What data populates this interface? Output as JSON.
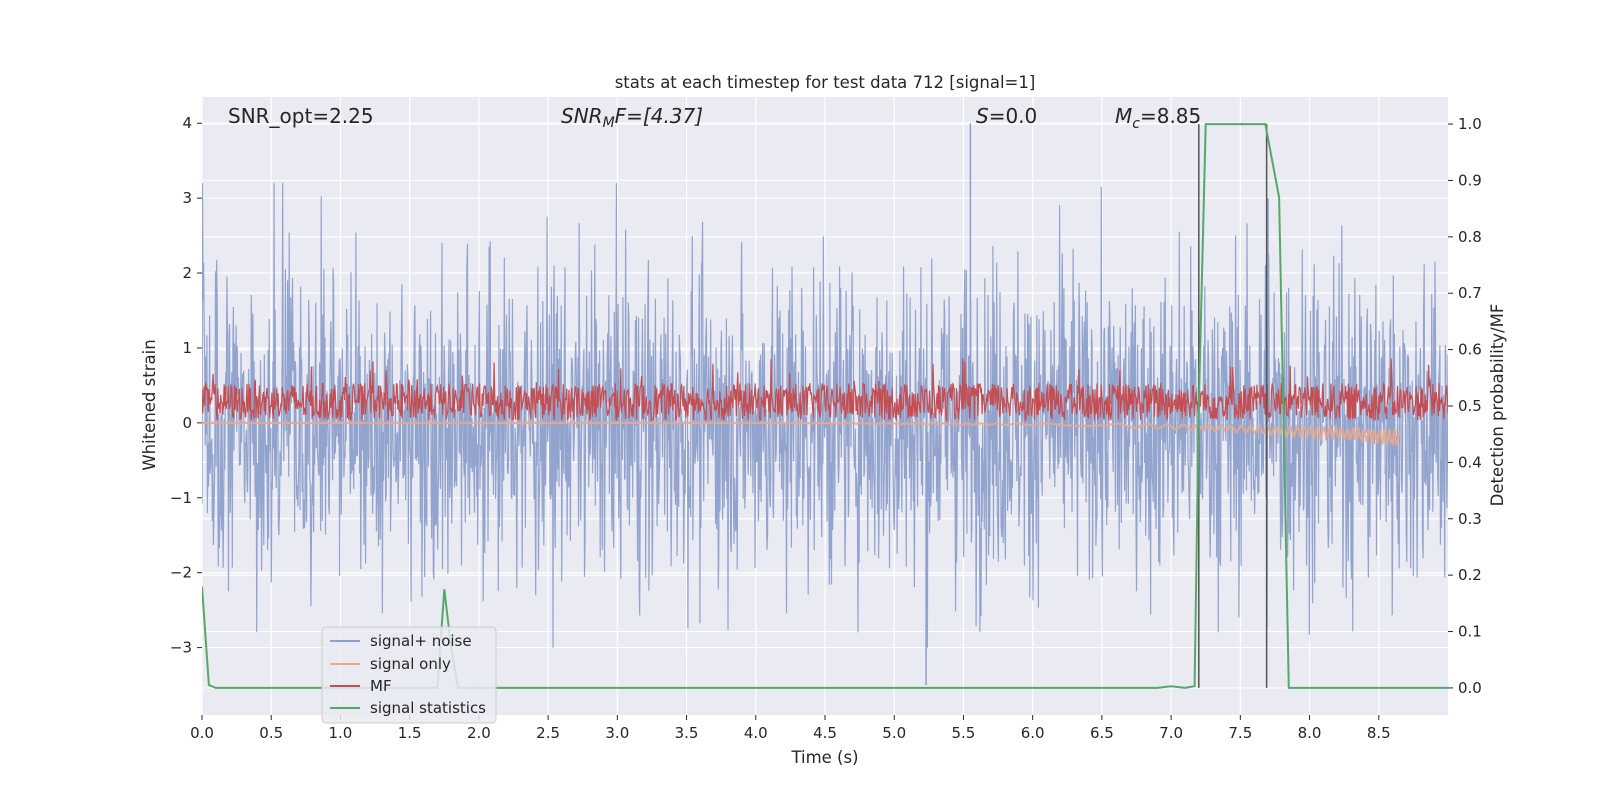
{
  "chart_data": {
    "type": "line",
    "title": "stats at each timestep for test data 712 [signal=1]",
    "xlabel": "Time (s)",
    "ylabel_left": "Whitened strain",
    "ylabel_right": "Detection probability/MF",
    "xlim": [
      0,
      9.0
    ],
    "ylim_left": [
      -3.9,
      4.35
    ],
    "ylim_right": [
      -0.048,
      1.048
    ],
    "grid": true,
    "legend_location": "lower-left",
    "x_ticks": [
      "0.0",
      "0.5",
      "1.0",
      "1.5",
      "2.0",
      "2.5",
      "3.0",
      "3.5",
      "4.0",
      "4.5",
      "5.0",
      "5.5",
      "6.0",
      "6.5",
      "7.0",
      "7.5",
      "8.0",
      "8.5"
    ],
    "y_ticks_left": [
      "4",
      "3",
      "2",
      "1",
      "0",
      "−1",
      "−2",
      "−3"
    ],
    "y_ticks_right": [
      "1.0",
      "0.9",
      "0.8",
      "0.7",
      "0.6",
      "0.5",
      "0.4",
      "0.3",
      "0.2",
      "0.1",
      "0.0"
    ],
    "annotations": {
      "snr_opt": "SNR_opt=2.25",
      "snr_mf_sym": "SNR",
      "snr_mf_sub": "M",
      "snr_mf_rest": "F=[4.37]",
      "s_sym": "S",
      "s_rest": "=0.0",
      "mc_sym": "M",
      "mc_sub": "c",
      "mc_rest": "=8.85"
    },
    "series": [
      {
        "name": "signal+ noise",
        "color": "#8da0cb",
        "axis": "left",
        "style": "noise band",
        "approx_range": [
          -3.5,
          4.0
        ],
        "notable_peaks": [
          {
            "x": 5.55,
            "y": 4.0
          },
          {
            "x": 5.23,
            "y": -3.5
          },
          {
            "x": 7.7,
            "y": 3.0
          },
          {
            "x": 7.15,
            "y": 1.5
          }
        ]
      },
      {
        "name": "signal only",
        "color": "#e8a98c",
        "axis": "left",
        "style": "chirp",
        "x": [
          0,
          2.0,
          4.0,
          5.0,
          6.0,
          6.5,
          7.0,
          7.5,
          8.0,
          8.3,
          8.5,
          8.65
        ],
        "y": [
          0.0,
          0.0,
          0.0,
          -0.01,
          -0.02,
          -0.03,
          -0.05,
          -0.08,
          -0.12,
          -0.15,
          -0.18,
          -0.22
        ]
      },
      {
        "name": "MF",
        "color": "#c44e52",
        "axis": "left",
        "style": "noise band",
        "approx_range": [
          -0.0,
          0.95
        ]
      },
      {
        "name": "signal statistics",
        "color": "#55a868",
        "axis": "right",
        "x": [
          0,
          0.05,
          0.1,
          0.5,
          1.0,
          1.5,
          1.6,
          1.7,
          1.75,
          1.8,
          1.85,
          1.9,
          2.5,
          6.5,
          6.9,
          7.0,
          7.1,
          7.17,
          7.2,
          7.25,
          7.68,
          7.78,
          7.85,
          8.0,
          8.5,
          9.0
        ],
        "y": [
          0.18,
          0.005,
          0.0,
          0.0,
          0.0,
          0.0,
          0.0,
          0.0,
          0.175,
          0.07,
          0.0,
          0.0,
          0.0,
          0.0,
          0.0,
          0.003,
          0.0,
          0.003,
          0.5,
          1.0,
          1.0,
          0.87,
          0.0,
          0.0,
          0.0,
          0.0
        ]
      }
    ],
    "vertical_markers": [
      {
        "x": 7.2,
        "color": "#555555"
      },
      {
        "x": 7.69,
        "color": "#555555"
      }
    ]
  },
  "colors": {
    "plot_background": "#eaeaf2",
    "grid": "#ffffff",
    "text": "#262626"
  }
}
